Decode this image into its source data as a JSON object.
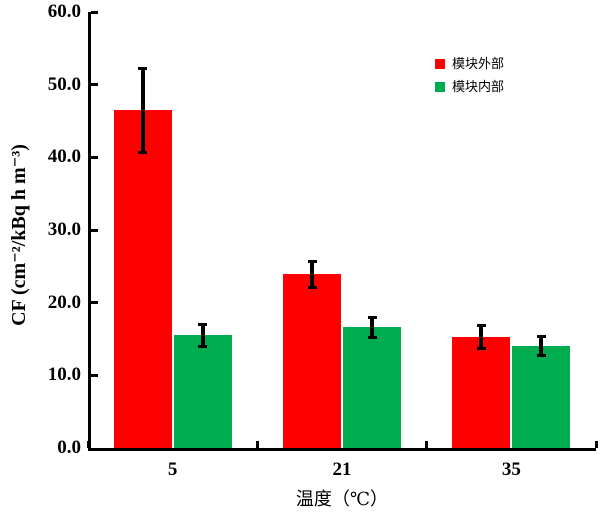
{
  "chart_data": {
    "type": "bar",
    "categories": [
      "5",
      "21",
      "35"
    ],
    "series": [
      {
        "name": "模块外部",
        "color": "#ff0000",
        "values": [
          46.5,
          23.9,
          15.3
        ],
        "errors": [
          6.0,
          2.0,
          1.8
        ]
      },
      {
        "name": "模块内部",
        "color": "#00ac50",
        "values": [
          15.5,
          16.6,
          14.0
        ],
        "errors": [
          1.7,
          1.6,
          1.5
        ]
      }
    ],
    "title": "",
    "xlabel": "温度（℃）",
    "ylabel": "CF (cm⁻²/kBq h m⁻³)",
    "ylim": [
      0,
      60
    ],
    "ytick_step": 10,
    "ytick_labels": [
      "0.0",
      "10.0",
      "20.0",
      "30.0",
      "40.0",
      "50.0",
      "60.0"
    ],
    "grid": false,
    "legend_position": "inside-top-right",
    "error_bar_color": "#000000",
    "axis_color": "#000000",
    "background_color": "#ffffff"
  }
}
